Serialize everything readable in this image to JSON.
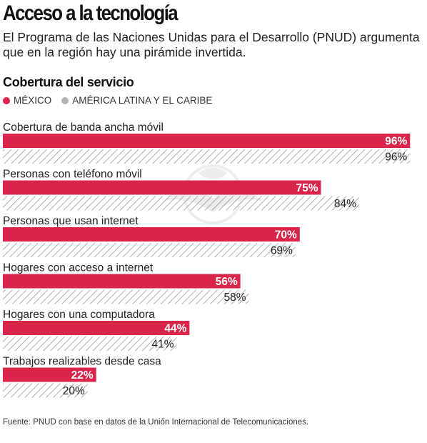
{
  "header": {
    "title": "Acceso a la tecnología",
    "subtitle": "El Programa de las Naciones Unidas para el Desarrollo (PNUD) argumenta que en la región hay una pirámide invertida.",
    "section_title": "Cobertura del servicio"
  },
  "legend": [
    {
      "label": "MÉXICO",
      "color": "#d9254a"
    },
    {
      "label": "AMÉRICA LATINA Y EL CARIBE",
      "color": "#b5b5b5"
    }
  ],
  "colors": {
    "mexico": "#d9254a",
    "latam_hatch": "#b5b5b5"
  },
  "chart_data": {
    "type": "bar",
    "orientation": "horizontal",
    "title": "Cobertura del servicio",
    "categories": [
      "Cobertura de banda ancha móvil",
      "Personas con teléfono móvil",
      "Personas que usan internet",
      "Hogares con acceso a internet",
      "Hogares con una computadora",
      "Trabajos realizables desde casa"
    ],
    "series": [
      {
        "name": "MÉXICO",
        "values": [
          96,
          75,
          70,
          56,
          44,
          22
        ],
        "labels": [
          "96%",
          "75%",
          "70%",
          "56%",
          "44%",
          "22%"
        ]
      },
      {
        "name": "AMÉRICA LATINA Y EL CARIBE",
        "values": [
          96,
          84,
          69,
          58,
          41,
          20
        ],
        "labels": [
          "96%",
          "84%",
          "69%",
          "58%",
          "41%",
          "20%"
        ]
      }
    ],
    "xlim": [
      0,
      100
    ],
    "grid": false,
    "legend_position": "top-left"
  },
  "source": "Fuente: PNUD con base en datos de la Unión Internacional de Telecomunicaciones."
}
